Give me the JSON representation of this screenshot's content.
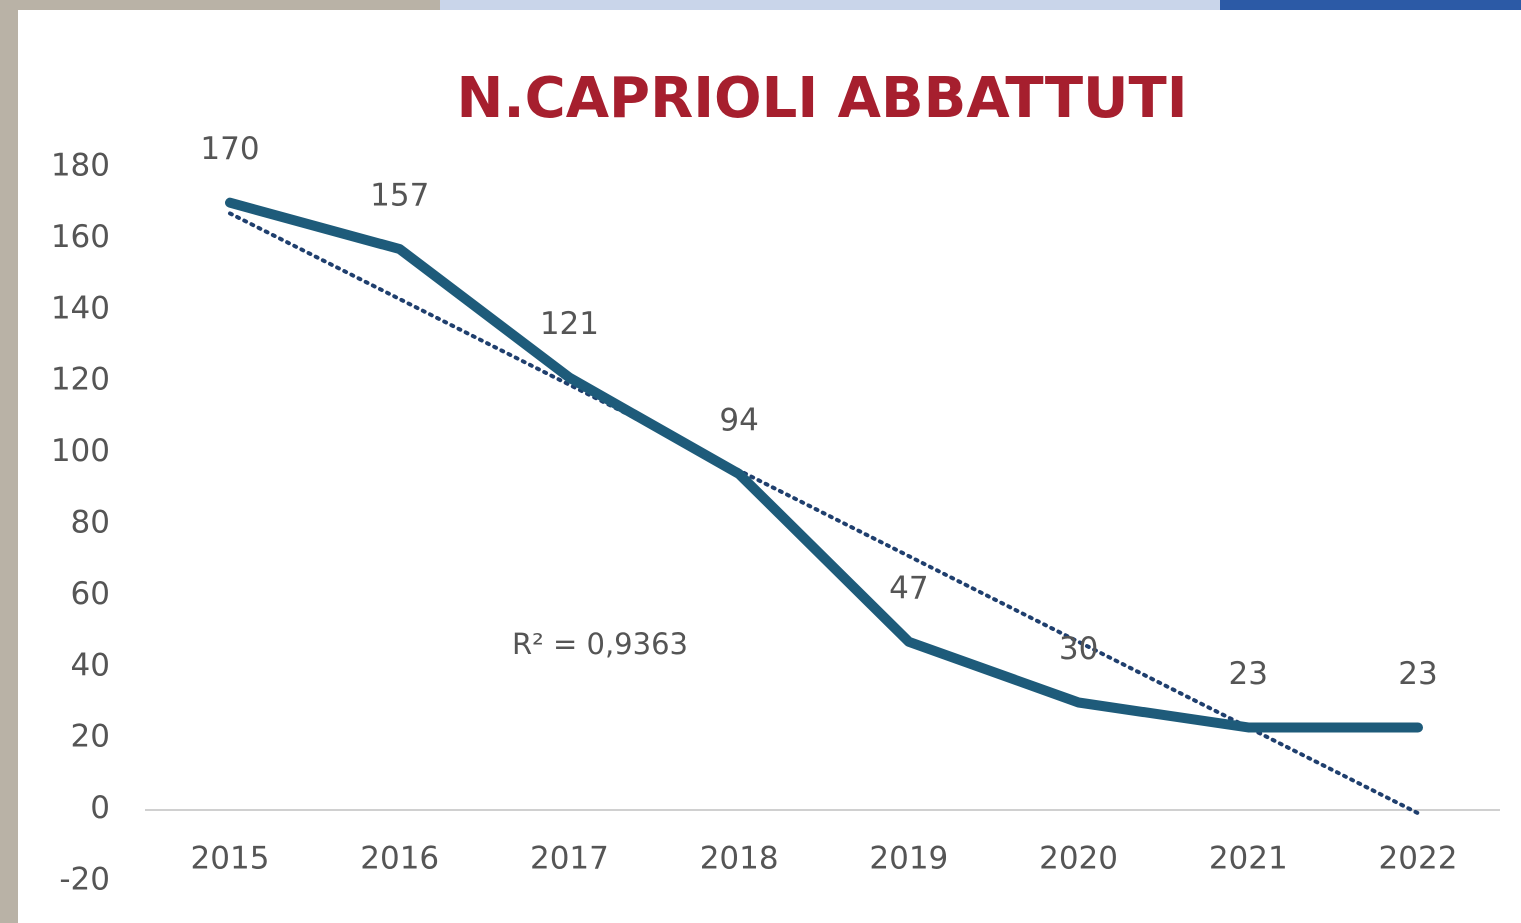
{
  "chart_data": {
    "type": "line",
    "title": "N.CAPRIOLI ABBATTUTI",
    "categories": [
      "2015",
      "2016",
      "2017",
      "2018",
      "2019",
      "2020",
      "2021",
      "2022"
    ],
    "values": [
      170,
      157,
      121,
      94,
      47,
      30,
      23,
      23
    ],
    "color": "#1e5b7a",
    "trendline": {
      "values": [
        167,
        143,
        119,
        95,
        71,
        47,
        23,
        -1
      ],
      "color": "#1f3f6e"
    },
    "annotation": "R² = 0,9363",
    "ylim": [
      -20,
      180
    ],
    "yticks": [
      -20,
      0,
      20,
      40,
      60,
      80,
      100,
      120,
      140,
      160,
      180
    ],
    "grid": false
  }
}
